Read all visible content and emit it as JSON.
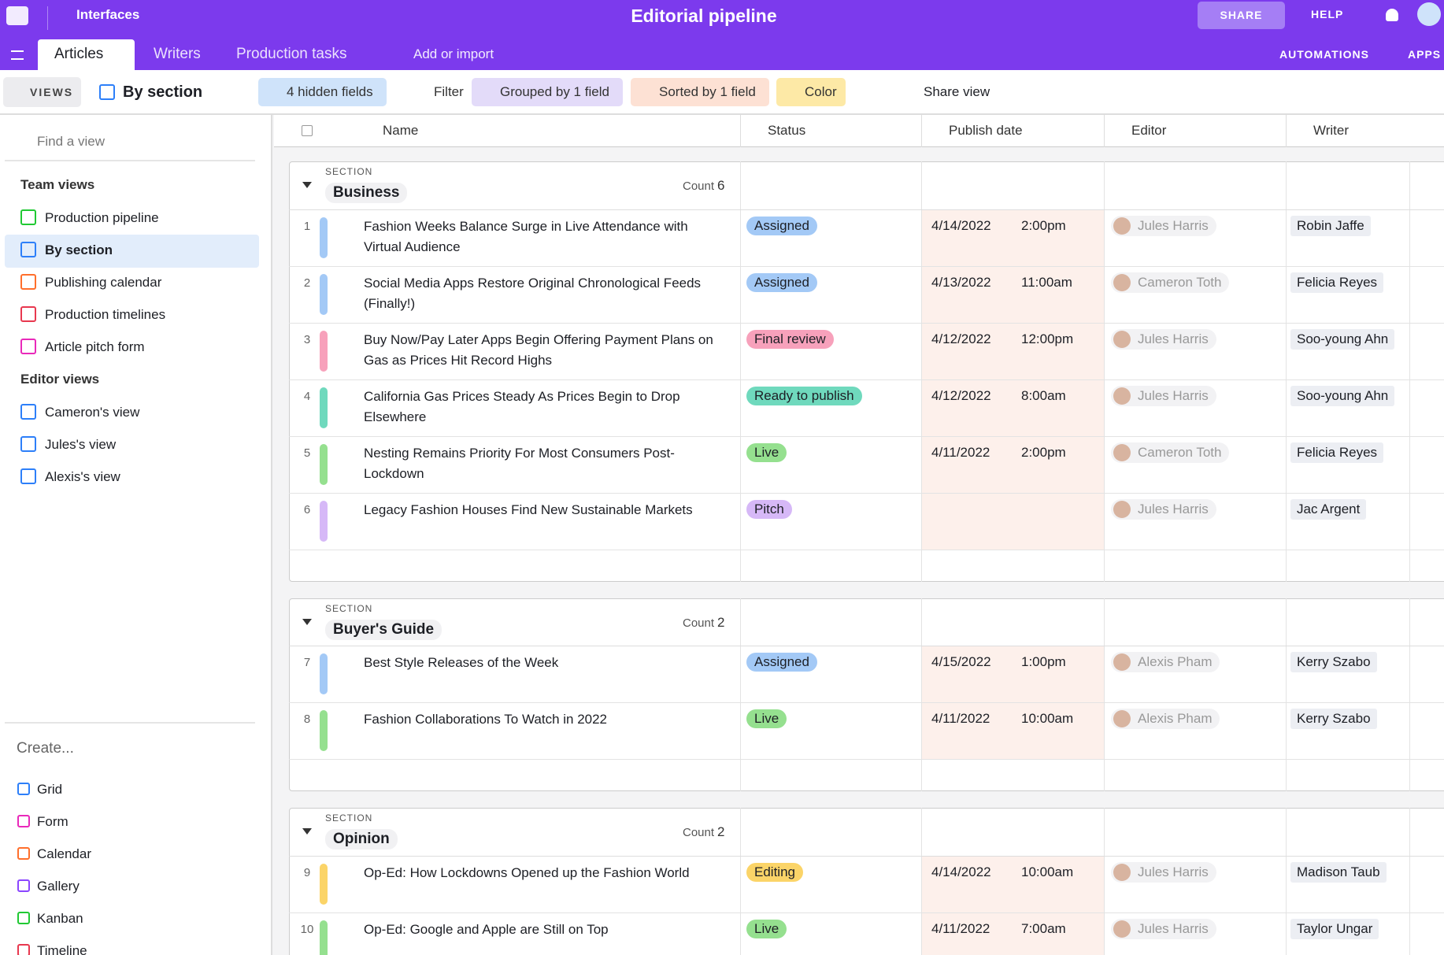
{
  "topbar": {
    "brand": "Interfaces",
    "title": "Editorial pipeline",
    "share": "SHARE",
    "help": "HELP"
  },
  "tabs": [
    "Articles",
    "Writers",
    "Production tasks"
  ],
  "add_import": "Add or import",
  "toolbar_right": [
    "AUTOMATIONS",
    "APPS"
  ],
  "viewbar": {
    "views": "VIEWS",
    "current_view": "By section",
    "buttons": [
      {
        "label": "4 hidden fields",
        "color": "#cfe3fa"
      },
      {
        "label": "Filter",
        "color": "#ffffff"
      },
      {
        "label": "Grouped by 1 field",
        "color": "#e3dbf9"
      },
      {
        "label": "Sorted by 1 field",
        "color": "#fde1d4"
      },
      {
        "label": "Color",
        "color": "#fde9a6"
      }
    ],
    "share_view": "Share view"
  },
  "sidebar": {
    "search": "Find a view",
    "groups": [
      {
        "title": "Team views",
        "items": [
          "Production pipeline",
          "By section",
          "Publishing calendar",
          "Production timelines",
          "Article pitch form"
        ]
      },
      {
        "title": "Editor views",
        "items": [
          "Cameron's view",
          "Jules's view",
          "Alexis's view"
        ]
      }
    ],
    "create": {
      "title": "Create...",
      "items": [
        "Grid",
        "Form",
        "Calendar",
        "Gallery",
        "Kanban",
        "Timeline"
      ]
    }
  },
  "table": {
    "columns": [
      "Name",
      "Status",
      "Publish date",
      "Editor",
      "Writer"
    ],
    "section_label": "SECTION",
    "count_label": "Count",
    "groups": [
      {
        "name": "Business",
        "count": 6,
        "rows": [
          {
            "id": 1,
            "name": "Fashion Weeks Balance Surge in Live Attendance with Virtual Audience",
            "status": "Assigned",
            "color": "#a3c9f6",
            "date": "4/14/2022",
            "time": "2:00pm",
            "editor": "Jules Harris",
            "writer": "Robin Jaffe"
          },
          {
            "id": 2,
            "name": "Social Media Apps Restore Original Chronological Feeds (Finally!)",
            "status": "Assigned",
            "color": "#a3c9f6",
            "date": "4/13/2022",
            "time": "11:00am",
            "editor": "Cameron Toth",
            "writer": "Felicia Reyes"
          },
          {
            "id": 3,
            "name": "Buy Now/Pay Later Apps Begin Offering Payment Plans on Gas as Prices Hit Record Highs",
            "status": "Final review",
            "color": "#f7a1bb",
            "date": "4/12/2022",
            "time": "12:00pm",
            "editor": "Jules Harris",
            "writer": "Soo-young Ahn"
          },
          {
            "id": 4,
            "name": "California Gas Prices Steady As Prices Begin to Drop Elsewhere",
            "status": "Ready to publish",
            "color": "#6fd9bd",
            "date": "4/12/2022",
            "time": "8:00am",
            "editor": "Jules Harris",
            "writer": "Soo-young Ahn"
          },
          {
            "id": 5,
            "name": "Nesting Remains Priority For Most Consumers Post-Lockdown",
            "status": "Live",
            "color": "#95e08f",
            "date": "4/11/2022",
            "time": "2:00pm",
            "editor": "Cameron Toth",
            "writer": "Felicia Reyes"
          },
          {
            "id": 6,
            "name": "Legacy Fashion Houses Find New Sustainable Markets",
            "status": "Pitch",
            "color": "#d6b8f7",
            "date": null,
            "time": null,
            "editor": "Jules Harris",
            "writer": "Jac Argent"
          }
        ]
      },
      {
        "name": "Buyer's Guide",
        "count": 2,
        "rows": [
          {
            "id": 7,
            "name": "Best Style Releases of the Week",
            "status": "Assigned",
            "color": "#a3c9f6",
            "date": "4/15/2022",
            "time": "1:00pm",
            "editor": "Alexis Pham",
            "writer": "Kerry Szabo"
          },
          {
            "id": 8,
            "name": "Fashion Collaborations To Watch in 2022",
            "status": "Live",
            "color": "#95e08f",
            "date": "4/11/2022",
            "time": "10:00am",
            "editor": "Alexis Pham",
            "writer": "Kerry Szabo"
          }
        ]
      },
      {
        "name": "Opinion",
        "count": 2,
        "rows": [
          {
            "id": 9,
            "name": "Op-Ed: How Lockdowns Opened up the Fashion World",
            "status": "Editing",
            "color": "#fbd468",
            "date": "4/14/2022",
            "time": "10:00am",
            "editor": "Jules Harris",
            "writer": "Madison Taub"
          },
          {
            "id": 10,
            "name": "Op-Ed: Google and Apple are Still on Top",
            "status": "Live",
            "color": "#95e08f",
            "date": "4/11/2022",
            "time": "7:00am",
            "editor": "Jules Harris",
            "writer": "Taylor Ungar"
          }
        ]
      }
    ]
  }
}
